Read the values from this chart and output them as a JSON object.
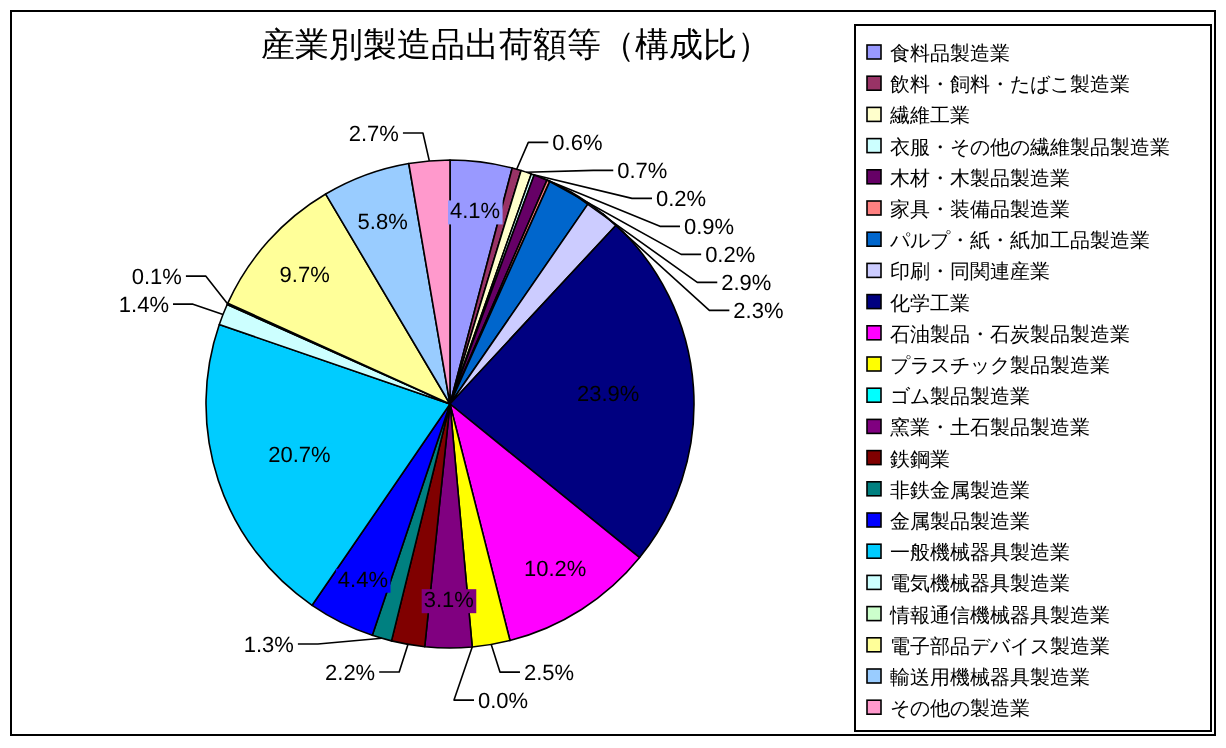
{
  "chart_data": {
    "type": "pie",
    "title": "産業別製造品出荷額等（構成比）",
    "categories": [
      "食料品製造業",
      "飲料・飼料・たばこ製造業",
      "繊維工業",
      "衣服・その他の繊維製品製造業",
      "木材・木製品製造業",
      "家具・装備品製造業",
      "パルプ・紙・紙加工品製造業",
      "印刷・同関連産業",
      "化学工業",
      "石油製品・石炭製品製造業",
      "プラスチック製品製造業",
      "ゴム製品製造業",
      "窯業・土石製品製造業",
      "鉄鋼業",
      "非鉄金属製造業",
      "金属製品製造業",
      "一般機械器具製造業",
      "電気機械器具製造業",
      "情報通信機械器具製造業",
      "電子部品デバイス製造業",
      "輸送用機械器具製造業",
      "その他の製造業"
    ],
    "values": [
      4.1,
      0.6,
      0.7,
      0.2,
      0.9,
      0.2,
      2.9,
      2.3,
      23.9,
      10.2,
      2.5,
      0.0,
      3.1,
      2.2,
      1.3,
      4.4,
      20.7,
      1.4,
      0.1,
      9.7,
      5.8,
      2.7
    ],
    "colors": [
      "#9999ff",
      "#993366",
      "#ffffcc",
      "#ccffff",
      "#660066",
      "#ff8080",
      "#0066cc",
      "#ccccff",
      "#000080",
      "#ff00ff",
      "#ffff00",
      "#00ffff",
      "#800080",
      "#800000",
      "#008080",
      "#0000ff",
      "#00ccff",
      "#ccffff",
      "#ccffcc",
      "#ffff99",
      "#99ccff",
      "#ff99cc"
    ],
    "value_labels": [
      "4.1%",
      "0.6%",
      "0.7%",
      "0.2%",
      "0.9%",
      "0.2%",
      "2.9%",
      "2.3%",
      "23.9%",
      "10.2%",
      "2.5%",
      "0.0%",
      "3.1%",
      "2.2%",
      "1.3%",
      "4.4%",
      "20.7%",
      "1.4%",
      "0.1%",
      "9.7%",
      "5.8%",
      "2.7%"
    ],
    "legend": "right"
  }
}
